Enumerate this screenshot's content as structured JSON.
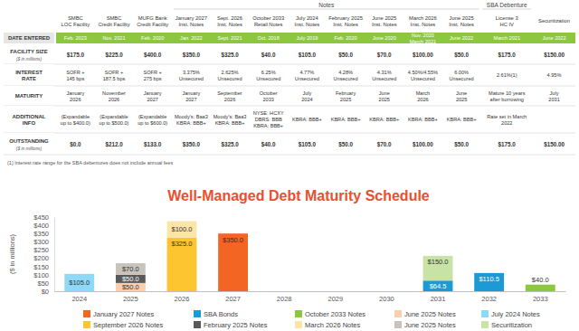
{
  "table": {
    "columns": [
      {
        "group": null,
        "header": "SMBC\nLOC Facility"
      },
      {
        "group": null,
        "header": "SMBC\nCredit Facility"
      },
      {
        "group": null,
        "header": "MUFG Bank\nCredit Facility"
      },
      {
        "group": "Notes",
        "header": "January 2027\nInst. Notes"
      },
      {
        "group": "Notes",
        "header": "Sept. 2026\nInst. Notes"
      },
      {
        "group": "Notes",
        "header": "October 2033\nRetail Notes"
      },
      {
        "group": "Notes",
        "header": "July 2024\nInst. Notes"
      },
      {
        "group": "Notes",
        "header": "February 2025\nInst. Notes"
      },
      {
        "group": "Notes",
        "header": "June 2025\nInst. Notes"
      },
      {
        "group": "Notes",
        "header": "March 2026\nInst. Notes"
      },
      {
        "group": "Notes",
        "header": "June 2025\nInst. Notes"
      },
      {
        "group": "SBA Debenture",
        "header": "License 3\nHC IV"
      },
      {
        "group": null,
        "header": "Securitization"
      }
    ],
    "rows": [
      {
        "label": "DATE ENTERED",
        "sublabel": null,
        "cells": [
          "Feb. 2023",
          "Nov. 2021",
          "Feb. 2020",
          "Jan. 2022",
          "Sept. 2021",
          "Oct. 2018",
          "July 2019",
          "Feb. 2020",
          "June 2020",
          "Nov. 2020\nMarch 2021",
          "June 2022",
          "March 2021",
          "June 2022"
        ]
      },
      {
        "label": "FACILITY SIZE",
        "sublabel": "($ in millions)",
        "cells": [
          "$175.0",
          "$225.0",
          "$400.0",
          "$350.0",
          "$325.0",
          "$40.0",
          "$105.0",
          "$50.0",
          "$70.0",
          "$100.00",
          "$50.0",
          "$175.0",
          "$150.00"
        ]
      },
      {
        "label": "INTEREST\nRATE",
        "sublabel": null,
        "cells": [
          "SOFR +\n145 bps",
          "SOFR +\n187.5 bps",
          "SOFR +\n275 bps",
          "3.375%\nUnsecured",
          "2.625%\nUnsecured",
          "6.25%\nUnsecured",
          "4.77%\nUnsecured",
          "4.28%\nUnsecured",
          "4.31%\nUnsecured",
          "4.50%/4.55%\nUnsecured",
          "6.00%\nUnsecured",
          "2.61%(1)",
          "4.95%"
        ]
      },
      {
        "label": "MATURITY",
        "sublabel": null,
        "cells": [
          "January\n2026",
          "November\n2026",
          "January\n2027",
          "January\n2027",
          "September\n2026",
          "October\n2033",
          "July\n2024",
          "February\n2025",
          "June\n2025",
          "March\n2026",
          "June\n2025",
          "Mature 10 years\nafter borrowing",
          "July\n2031"
        ]
      },
      {
        "label": "ADDITIONAL\nINFO",
        "sublabel": null,
        "cells": [
          "(Expandable\nup to $400.0)",
          "(Expandable\nup to $500.0)",
          "(Expandable\nup to $600.0)",
          "Moody's: Baa3\nKBRA: BBB+",
          "Moody's: Baa3\nKBRA: BBB+",
          "NYSE: HCXY\nDBRS: BBB\nKBRA: BBB+",
          "KBRA: BBB+",
          "KBRA: BBB+",
          "KBRA: BBB+",
          "KBRA: BBB+",
          "KBRA: BBB+",
          "Rate set in March\n2022",
          null
        ]
      },
      {
        "label": "OUTSTANDING",
        "sublabel": "($ in millions)",
        "cells": [
          "$0.0",
          "$212.0",
          "$133.0",
          "$350.0",
          "$325.0",
          "$40.0",
          "$105.0",
          "$50.0",
          "$70.0",
          "$100.00",
          "$50.0",
          "$175.0",
          "$150.00"
        ]
      }
    ],
    "footnote": "(1) Interest rate range for the SBA debentures does not include annual fees"
  },
  "chart_data": {
    "type": "bar",
    "title": "Well-Managed Debt Maturity Schedule",
    "ylabel": "($ in millions)",
    "categories": [
      "2024",
      "2025",
      "2026",
      "2027",
      "2028",
      "2029",
      "2030",
      "2031",
      "2032",
      "2033"
    ],
    "stacked": true,
    "data_labels": true,
    "grid": false,
    "legend": "bottom",
    "ylim": [
      0,
      450
    ],
    "yticks": [
      {
        "value": 0,
        "label": "$0"
      },
      {
        "value": 50,
        "label": "$50"
      },
      {
        "value": 100,
        "label": "$100"
      },
      {
        "value": 150,
        "label": "$150"
      },
      {
        "value": 200,
        "label": "$200"
      },
      {
        "value": 250,
        "label": "$250"
      },
      {
        "value": 300,
        "label": "$300"
      },
      {
        "value": 350,
        "label": "$350"
      },
      {
        "value": 400,
        "label": "$400"
      },
      {
        "value": 450,
        "label": "$450"
      }
    ],
    "series": [
      {
        "name": "January 2027 Notes",
        "color": "#f26522",
        "values": [
          null,
          null,
          null,
          350,
          null,
          null,
          null,
          null,
          null,
          null
        ],
        "value_labels": [
          null,
          null,
          null,
          "$350.0",
          null,
          null,
          null,
          null,
          null,
          null
        ]
      },
      {
        "name": "SBA Bonds",
        "color": "#1b9ad6",
        "values": [
          null,
          null,
          null,
          null,
          null,
          null,
          null,
          64.5,
          110.5,
          null
        ],
        "value_labels": [
          null,
          null,
          null,
          null,
          null,
          null,
          null,
          "$64.5",
          "$110.5",
          null
        ]
      },
      {
        "name": "October 2033 Notes",
        "color": "#8dc63f",
        "values": [
          null,
          null,
          null,
          null,
          null,
          null,
          null,
          null,
          null,
          40
        ],
        "value_labels": [
          null,
          null,
          null,
          null,
          null,
          null,
          null,
          null,
          null,
          "$40.0"
        ]
      },
      {
        "name": "June 2025 Notes",
        "color": "#f9cfb0",
        "values": [
          null,
          50,
          null,
          null,
          null,
          null,
          null,
          null,
          null,
          null
        ],
        "value_labels": [
          null,
          "$50.0",
          null,
          null,
          null,
          null,
          null,
          null,
          null,
          null
        ]
      },
      {
        "name": "July 2024 Notes",
        "color": "#8ed8f8",
        "values": [
          105,
          null,
          null,
          null,
          null,
          null,
          null,
          null,
          null,
          null
        ],
        "value_labels": [
          "$105.0",
          null,
          null,
          null,
          null,
          null,
          null,
          null,
          null,
          null
        ]
      },
      {
        "name": "September 2026 Notes",
        "color": "#fdc530",
        "values": [
          null,
          null,
          325,
          null,
          null,
          null,
          null,
          null,
          null,
          null
        ],
        "value_labels": [
          null,
          null,
          "$325.0",
          null,
          null,
          null,
          null,
          null,
          null,
          null
        ]
      },
      {
        "name": "February 2025 Notes",
        "color": "#595959",
        "values": [
          null,
          50,
          null,
          null,
          null,
          null,
          null,
          null,
          null,
          null
        ],
        "value_labels": [
          null,
          "$50.0",
          null,
          null,
          null,
          null,
          null,
          null,
          null,
          null
        ]
      },
      {
        "name": "March 2026 Notes",
        "color": "#fde4a7",
        "values": [
          null,
          null,
          100,
          null,
          null,
          null,
          null,
          null,
          null,
          null
        ],
        "value_labels": [
          null,
          null,
          "$100.0",
          null,
          null,
          null,
          null,
          null,
          null,
          null
        ]
      },
      {
        "name": "June 2025 Notes",
        "color": "#c8c3bb",
        "values": [
          null,
          70,
          null,
          null,
          null,
          null,
          null,
          null,
          null,
          null
        ],
        "value_labels": [
          null,
          "$70.0",
          null,
          null,
          null,
          null,
          null,
          null,
          null,
          null
        ]
      },
      {
        "name": "Securitization",
        "color": "#c9e3a6",
        "values": [
          null,
          null,
          null,
          null,
          null,
          null,
          null,
          150,
          null,
          null
        ],
        "value_labels": [
          null,
          null,
          null,
          null,
          null,
          null,
          null,
          "$150.0",
          null,
          null
        ]
      }
    ]
  }
}
